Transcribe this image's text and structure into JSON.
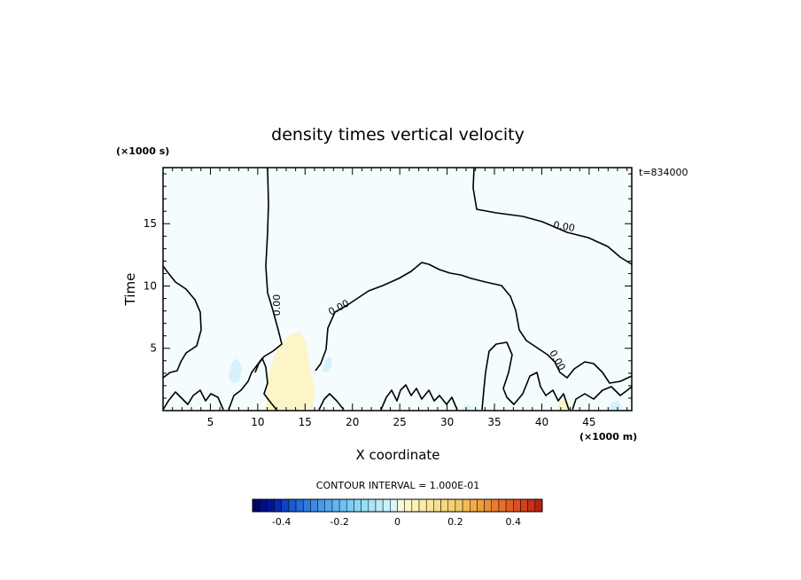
{
  "chart_data": {
    "type": "contour",
    "title": "density times vertical velocity",
    "xlabel": "X coordinate",
    "ylabel": "Time",
    "x_units": "(×1000 m)",
    "y_units": "(×1000 s)",
    "time_stamp": "t=834000",
    "xlim": [
      0,
      49.5
    ],
    "ylim": [
      0,
      19.5
    ],
    "x_ticks": [
      5,
      10,
      15,
      20,
      25,
      30,
      35,
      40,
      45
    ],
    "y_ticks": [
      5,
      10,
      15
    ],
    "contour_labels": [
      "0.00",
      "0.00",
      "0.00",
      "0.00"
    ],
    "contour_interval": "CONTOUR INTERVAL = 1.000E-01",
    "colorbar": {
      "min": -0.5,
      "max": 0.5,
      "ticks": [
        -0.4,
        -0.2,
        0,
        0.2,
        0.4
      ],
      "tick_labels": [
        "-0.4",
        "-0.2",
        "0",
        "0.2",
        "0.4"
      ],
      "colors_negative": [
        "#00005a",
        "#0018a8",
        "#1c5fd6",
        "#3c8ce6",
        "#5fb6f0",
        "#86d4f5",
        "#b5e9f8",
        "#e0f7fb"
      ],
      "colors_positive": [
        "#fdfbe0",
        "#fbf1b4",
        "#f7e08a",
        "#f3c862",
        "#ef9f3c",
        "#e8722a",
        "#d8461c",
        "#b01c10"
      ]
    },
    "background_color": "#f4fcfd",
    "positive_patches_color": "#fbf5c8",
    "negative_patches_color": "#d6f1fa"
  }
}
